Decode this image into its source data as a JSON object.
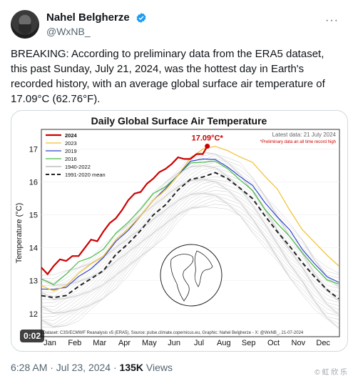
{
  "author": {
    "name": "Nahel Belgherze",
    "handle": "@WxNB_"
  },
  "tweet": {
    "text": "BREAKING: According to preliminary data from the ERA5 dataset, this past Sunday, July 21, 2024, was the hottest day in Earth's recorded history, with an average global surface air temperature of 17.09°C (62.76°F)."
  },
  "media": {
    "timer": "0:02"
  },
  "meta": {
    "time": "6:28 AM · Jul 23, 2024 · ",
    "views": "135K",
    "views_label": " Views"
  },
  "watermark": "© 虹 欣 乐",
  "chart_data": {
    "type": "line",
    "title": "Daily Global Surface Air Temperature",
    "ylabel": "Temperature (°C)",
    "xlabel": "",
    "x_categories": [
      "Jan",
      "Feb",
      "Mar",
      "Apr",
      "May",
      "Jun",
      "Jul",
      "Aug",
      "Sep",
      "Oct",
      "Nov",
      "Dec"
    ],
    "ylim": [
      11.3,
      17.6
    ],
    "yticks": [
      12,
      13,
      14,
      15,
      16,
      17
    ],
    "legend": [
      "2024",
      "2023",
      "2019",
      "2016",
      "1940-2022",
      "1991-2020 mean"
    ],
    "legend_placement": "top-left",
    "latest_note": "Latest data: 21 July 2024",
    "prelim_note": "*Preliminary data an all time record high",
    "record_label": "17.09°C*",
    "record": {
      "month": 6.68,
      "value": 17.09
    },
    "source": "Dataset: C3S/ECMWF Reanalysis v5 (ERA5), Source: pulse.climate.copernicus.eu, Graphic: Nahel Belgherze - X: @WxNB_, 21-07-2024",
    "colors": {
      "2024": "#cc0000",
      "2023": "#f0c030",
      "2019": "#3344cc",
      "2016": "#44bb44",
      "1940-2022": "#b0b0b0",
      "mean": "#222222"
    },
    "series": [
      {
        "name": "1991-2020 mean",
        "x": [
          0,
          0.5,
          1,
          1.5,
          2,
          2.5,
          3,
          3.5,
          4,
          4.5,
          5,
          5.5,
          6,
          6.5,
          7,
          7.5,
          8,
          8.5,
          9,
          9.5,
          10,
          10.5,
          11,
          11.5,
          11.97
        ],
        "y": [
          12.55,
          12.45,
          12.6,
          12.8,
          13.05,
          13.35,
          13.75,
          14.15,
          14.55,
          14.95,
          15.35,
          15.75,
          16.05,
          16.2,
          16.25,
          16.1,
          15.85,
          15.45,
          15.0,
          14.5,
          14.0,
          13.6,
          13.1,
          12.7,
          12.5
        ]
      },
      {
        "name": "2016",
        "x": [
          0,
          0.5,
          1,
          1.5,
          2,
          2.5,
          3,
          3.5,
          4,
          4.5,
          5,
          5.5,
          6,
          6.5,
          7,
          7.5,
          8,
          8.5,
          9,
          9.5,
          10,
          10.5,
          11,
          11.5,
          11.97
        ],
        "y": [
          13.05,
          12.85,
          13.25,
          13.55,
          13.7,
          14.0,
          14.4,
          14.8,
          15.2,
          15.6,
          15.9,
          16.2,
          16.55,
          16.65,
          16.6,
          16.4,
          16.1,
          15.7,
          15.2,
          14.75,
          14.3,
          13.9,
          13.4,
          13.0,
          12.95
        ]
      },
      {
        "name": "2019",
        "x": [
          0,
          0.5,
          1,
          1.5,
          2,
          2.5,
          3,
          3.5,
          4,
          4.5,
          5,
          5.5,
          6,
          6.5,
          7,
          7.5,
          8,
          8.5,
          9,
          9.5,
          10,
          10.5,
          11,
          11.5,
          11.97
        ],
        "y": [
          12.75,
          12.7,
          12.85,
          13.1,
          13.35,
          13.75,
          14.15,
          14.55,
          15.0,
          15.4,
          15.85,
          16.2,
          16.6,
          16.75,
          16.65,
          16.45,
          16.2,
          15.85,
          15.4,
          14.95,
          14.5,
          14.0,
          13.5,
          13.1,
          13.0
        ]
      },
      {
        "name": "2023",
        "x": [
          0,
          0.5,
          1,
          1.5,
          2,
          2.5,
          3,
          3.5,
          4,
          4.5,
          5,
          5.5,
          6,
          6.5,
          7,
          7.5,
          8,
          8.5,
          9,
          9.5,
          10,
          10.5,
          11,
          11.5,
          11.97
        ],
        "y": [
          12.85,
          12.65,
          12.9,
          13.2,
          13.5,
          13.8,
          14.2,
          14.6,
          15.0,
          15.4,
          15.8,
          16.2,
          16.7,
          17.05,
          17.05,
          16.95,
          16.8,
          16.55,
          16.2,
          15.8,
          15.1,
          14.6,
          14.15,
          13.75,
          13.5
        ]
      },
      {
        "name": "2024",
        "x": [
          0,
          0.25,
          0.5,
          0.75,
          1,
          1.25,
          1.5,
          1.75,
          2,
          2.25,
          2.5,
          2.75,
          3,
          3.25,
          3.5,
          3.75,
          4,
          4.25,
          4.5,
          4.75,
          5,
          5.25,
          5.5,
          5.75,
          6,
          6.25,
          6.5,
          6.68
        ],
        "y": [
          13.4,
          13.2,
          13.45,
          13.65,
          13.6,
          13.75,
          13.75,
          14.0,
          14.25,
          14.2,
          14.5,
          14.75,
          14.9,
          15.15,
          15.45,
          15.65,
          15.7,
          15.95,
          16.1,
          16.3,
          16.4,
          16.55,
          16.75,
          16.7,
          16.7,
          16.85,
          16.85,
          17.09
        ]
      }
    ]
  }
}
